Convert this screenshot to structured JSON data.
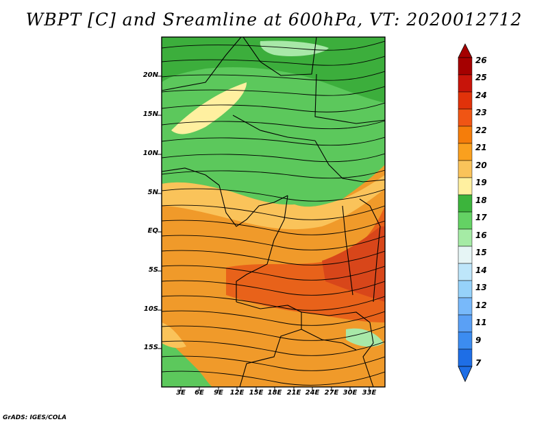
{
  "title": "WBPT [C] and Sreamline at 600hPa, VT: 2020012712",
  "credit": "GrADS: IGES/COLA",
  "map": {
    "lat_ticks": [
      "20N",
      "15N",
      "10N",
      "5N",
      "EQ",
      "5S",
      "10S",
      "15S"
    ],
    "lon_ticks": [
      "3E",
      "6E",
      "9E",
      "12E",
      "15E",
      "18E",
      "21E",
      "24E",
      "27E",
      "30E",
      "33E"
    ],
    "lat_range": [
      -20,
      24.5
    ],
    "lon_range": [
      0,
      35.5
    ]
  },
  "colorbar": {
    "labels": [
      "26",
      "25",
      "24",
      "23",
      "22",
      "21",
      "20",
      "19",
      "18",
      "17",
      "16",
      "15",
      "14",
      "13",
      "12",
      "11",
      "9",
      "7"
    ],
    "colors": [
      "#a50000",
      "#c8140a",
      "#e1320a",
      "#f05514",
      "#f57d0a",
      "#faa01e",
      "#fac35a",
      "#fff0a0",
      "#3cb43c",
      "#64d264",
      "#a5eba5",
      "#e6f5f5",
      "#bee6fa",
      "#96d2fa",
      "#78b9fa",
      "#5aa0f5",
      "#3c8cf0",
      "#1e6ee6"
    ]
  }
}
